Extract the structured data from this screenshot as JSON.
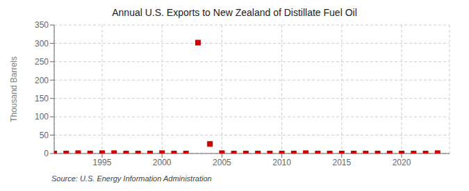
{
  "chart_data": {
    "type": "scatter",
    "title": "Annual U.S. Exports to New Zealand of Distillate Fuel Oil",
    "ylabel": "Thousand Barrels",
    "annotations": [
      "Source: U.S. Energy Information Administration"
    ],
    "x": [
      1991,
      1992,
      1993,
      1994,
      1995,
      1996,
      1997,
      1998,
      1999,
      2000,
      2001,
      2002,
      2003,
      2004,
      2005,
      2006,
      2007,
      2008,
      2009,
      2010,
      2011,
      2012,
      2013,
      2014,
      2015,
      2016,
      2017,
      2018,
      2019,
      2020,
      2021,
      2022,
      2023
    ],
    "values": [
      0,
      0,
      1,
      0,
      1,
      1,
      0,
      0,
      0,
      1,
      0,
      0,
      302,
      26,
      1,
      0,
      0,
      0,
      0,
      0,
      0,
      1,
      0,
      0,
      0,
      0,
      0,
      0,
      0,
      0,
      0,
      0,
      1
    ],
    "color": "#cc0000",
    "marker": "square",
    "xlim": [
      1991,
      2024
    ],
    "xticks": [
      1995,
      2000,
      2005,
      2010,
      2015,
      2020
    ],
    "ylim": [
      0,
      350
    ],
    "yticks": [
      0,
      50,
      100,
      150,
      200,
      250,
      300,
      350
    ],
    "grid": true
  }
}
